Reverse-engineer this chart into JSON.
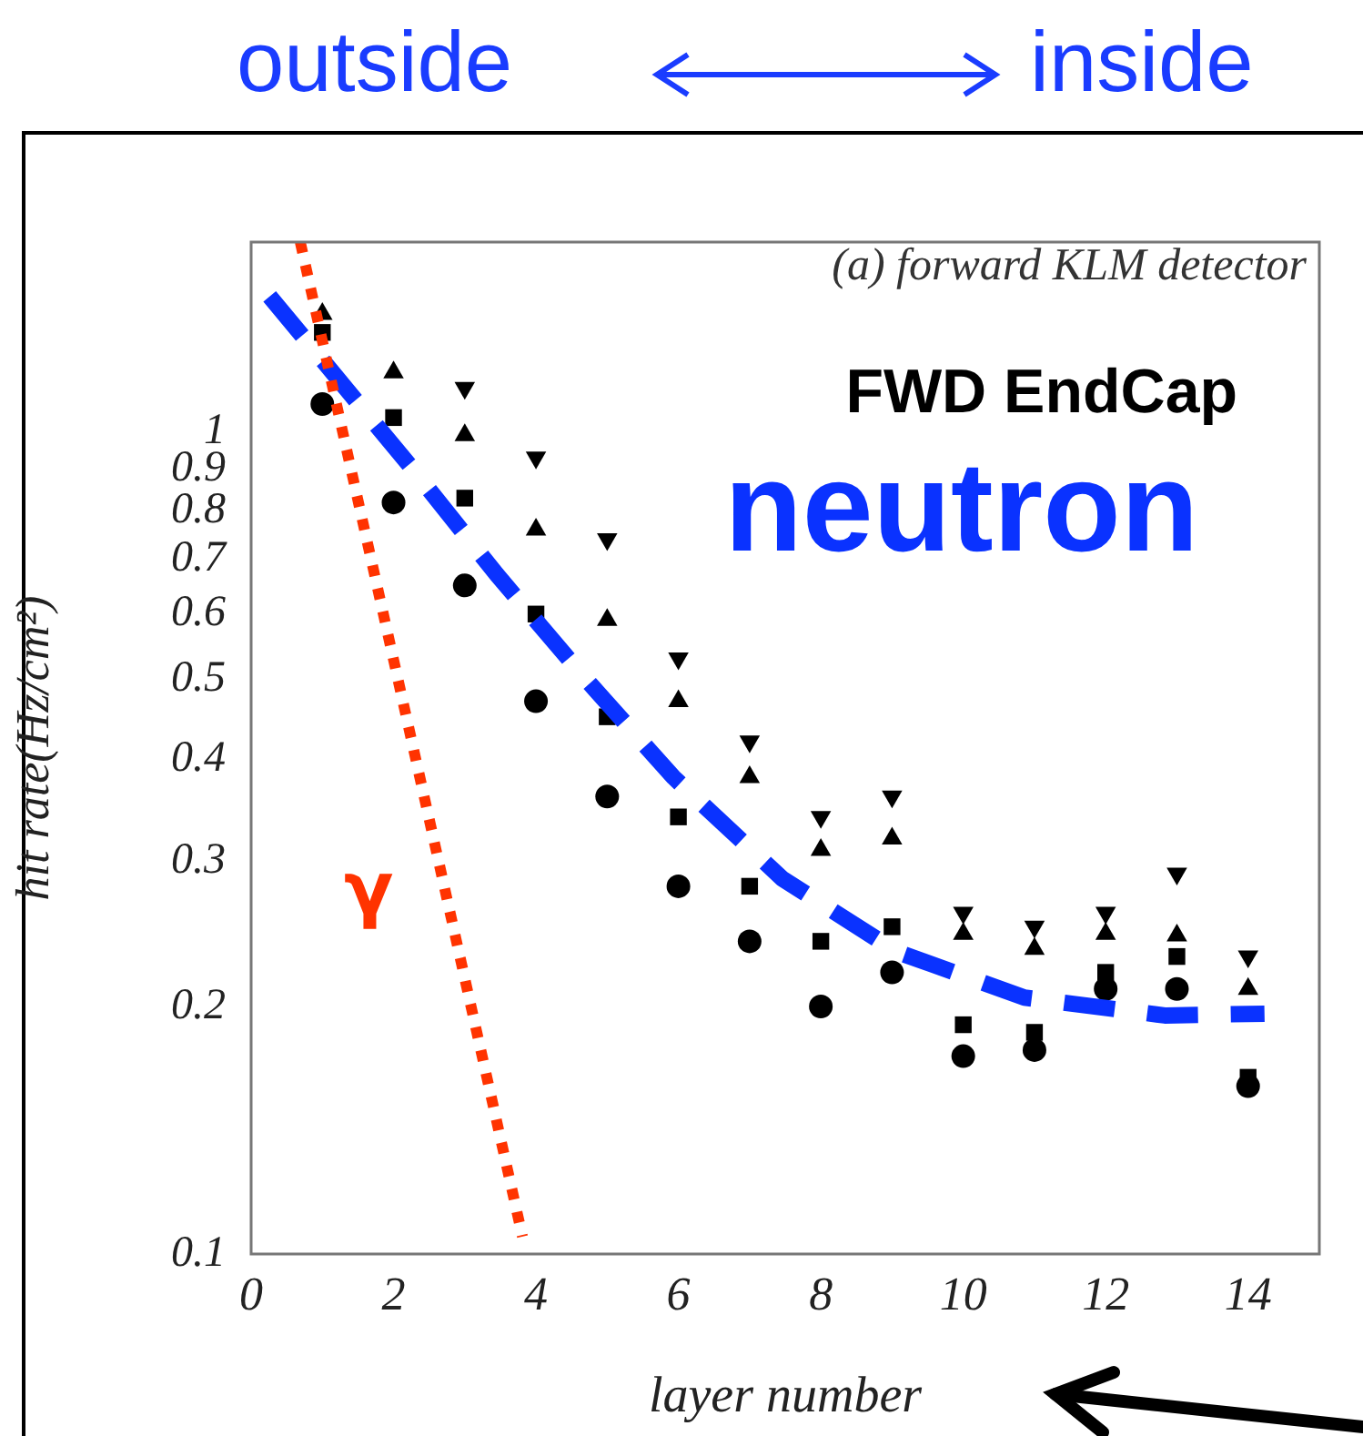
{
  "chart_data": {
    "type": "scatter",
    "xlabel": "layer number",
    "ylabel": "hit rate(Hz/cm²)",
    "x": [
      1,
      2,
      3,
      4,
      5,
      6,
      7,
      8,
      9,
      10,
      11,
      12,
      13,
      14
    ],
    "series": [
      {
        "color": "#000000",
        "marker": "circle",
        "values": [
          1.08,
          0.82,
          0.65,
          0.47,
          0.36,
          0.28,
          0.24,
          0.2,
          0.22,
          0.174,
          0.177,
          0.21,
          0.21,
          0.16
        ]
      },
      {
        "color": "#000000",
        "marker": "square",
        "values": [
          1.32,
          1.04,
          0.83,
          0.6,
          0.45,
          0.34,
          0.28,
          0.24,
          0.25,
          0.19,
          0.186,
          0.22,
          0.23,
          0.164
        ]
      },
      {
        "color": "#000000",
        "marker": "triangle",
        "values": [
          1.39,
          1.18,
          0.99,
          0.76,
          0.59,
          0.47,
          0.38,
          0.31,
          0.32,
          0.245,
          0.235,
          0.245,
          0.244,
          0.21
        ]
      },
      {
        "color": "#000000",
        "marker": "triangle_down",
        "values": [
          null,
          null,
          1.13,
          0.93,
          0.74,
          0.53,
          0.42,
          0.34,
          0.36,
          0.26,
          0.25,
          0.26,
          0.29,
          0.23
        ]
      },
      {
        "type": "line",
        "name": "neutron",
        "color": "#0a32ff",
        "marker": "none",
        "line_style": "dashed",
        "x": [
          0.26,
          2.27,
          3.45,
          4.7,
          5.93,
          7.46,
          9.07,
          10.86,
          12.83,
          14.23
        ],
        "values": [
          1.46,
          0.9,
          0.67,
          0.5,
          0.38,
          0.286,
          0.233,
          0.205,
          0.195,
          0.196
        ]
      },
      {
        "type": "line",
        "name": "γ",
        "color": "#ff3300",
        "marker": "none",
        "line_style": "dotted",
        "x": [
          0.69,
          3.81
        ],
        "values": [
          1.7,
          0.105
        ]
      }
    ],
    "log": "y",
    "xlim": [
      0,
      15
    ],
    "ylim": [
      0.1,
      1.7
    ],
    "xticks": [
      0,
      2,
      4,
      6,
      8,
      10,
      12,
      14
    ],
    "yticks": [
      0.1,
      0.2,
      0.3,
      0.4,
      0.5,
      0.6,
      0.7,
      0.8,
      0.9,
      1
    ],
    "grid": false,
    "legend": false,
    "annotations": [
      "(a) forward KLM detector",
      "FWD EndCap",
      "outside",
      "inside"
    ]
  }
}
